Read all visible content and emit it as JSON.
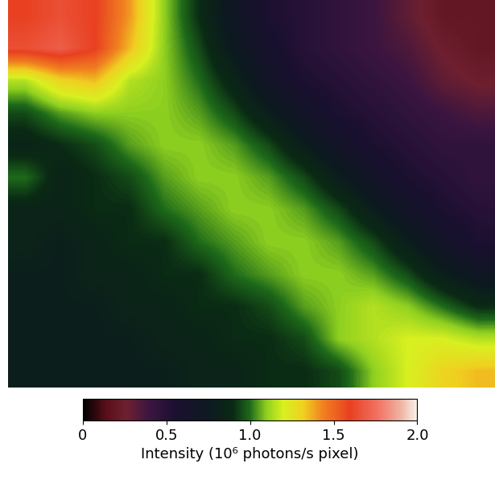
{
  "chart_data": {
    "type": "heatmap",
    "tick_labels": false,
    "cells": [
      [
        1.6,
        1.65,
        1.6,
        1.4,
        1.1,
        0.9,
        0.7,
        0.55,
        0.5,
        0.45,
        0.4,
        0.3,
        0.2,
        0.2
      ],
      [
        1.65,
        1.7,
        1.6,
        1.35,
        1.1,
        0.95,
        0.75,
        0.6,
        0.5,
        0.45,
        0.4,
        0.35,
        0.25,
        0.2
      ],
      [
        1.15,
        1.3,
        1.35,
        1.15,
        1.1,
        1.0,
        0.85,
        0.65,
        0.55,
        0.5,
        0.45,
        0.4,
        0.3,
        0.25
      ],
      [
        0.95,
        1.05,
        1.1,
        1.1,
        1.1,
        1.05,
        0.95,
        0.8,
        0.65,
        0.55,
        0.5,
        0.45,
        0.4,
        0.35
      ],
      [
        0.85,
        0.9,
        0.95,
        1.05,
        1.1,
        1.1,
        1.05,
        0.95,
        0.8,
        0.65,
        0.55,
        0.5,
        0.45,
        0.45
      ],
      [
        1.0,
        0.85,
        0.9,
        0.95,
        1.05,
        1.1,
        1.1,
        1.05,
        0.95,
        0.8,
        0.65,
        0.55,
        0.5,
        0.45
      ],
      [
        0.85,
        0.85,
        0.9,
        0.9,
        1.0,
        1.05,
        1.1,
        1.1,
        1.05,
        0.95,
        0.8,
        0.65,
        0.55,
        0.5
      ],
      [
        0.85,
        0.8,
        0.85,
        0.9,
        0.9,
        1.0,
        1.05,
        1.1,
        1.1,
        1.05,
        0.95,
        0.8,
        0.65,
        0.55
      ],
      [
        0.8,
        0.8,
        0.85,
        0.85,
        0.9,
        0.9,
        1.0,
        1.05,
        1.1,
        1.1,
        1.05,
        0.95,
        0.8,
        0.7
      ],
      [
        0.8,
        0.8,
        0.8,
        0.85,
        0.85,
        0.9,
        0.9,
        0.95,
        1.05,
        1.1,
        1.15,
        1.1,
        1.0,
        0.9
      ],
      [
        0.8,
        0.8,
        0.8,
        0.8,
        0.85,
        0.85,
        0.9,
        0.9,
        0.95,
        1.1,
        1.15,
        1.2,
        1.2,
        1.15
      ],
      [
        0.8,
        0.8,
        0.8,
        0.8,
        0.8,
        0.85,
        0.85,
        0.9,
        0.9,
        0.95,
        1.1,
        1.2,
        1.3,
        1.35
      ]
    ],
    "colorbar_label": "Intensity (10⁶ photons/s pixel)",
    "colorbar_lim": [
      0,
      2
    ],
    "colorbar_ticks": [
      0,
      0.5,
      {
        "value": 1,
        "label": "1.0"
      },
      1.5,
      {
        "value": 2,
        "label": "2.0"
      }
    ]
  }
}
